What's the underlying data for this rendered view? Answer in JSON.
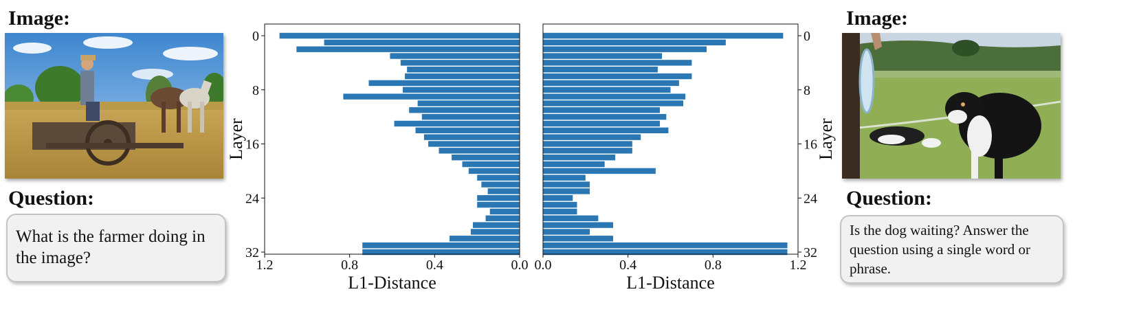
{
  "left": {
    "image_label": "Image:",
    "question_label": "Question:",
    "question": "What is the farmer doing in the image?"
  },
  "right": {
    "image_label": "Image:",
    "question_label": "Question:",
    "question": "Is the dog waiting? Answer the question using a single word or phrase."
  },
  "colors": {
    "bar": "#2a77b4"
  },
  "chart_data": [
    {
      "type": "bar",
      "orientation": "horizontal",
      "direction": "reversed",
      "xlabel": "L1-Distance",
      "ylabel": "Layer",
      "xlim": [
        1.2,
        0.0
      ],
      "xticks": [
        "1.2",
        "0.8",
        "0.4",
        "0.0"
      ],
      "yticks": [
        "0",
        "8",
        "16",
        "24",
        "32"
      ],
      "layers": [
        0,
        1,
        2,
        3,
        4,
        5,
        6,
        7,
        8,
        9,
        10,
        11,
        12,
        13,
        14,
        15,
        16,
        17,
        18,
        19,
        20,
        21,
        22,
        23,
        24,
        25,
        26,
        27,
        28,
        29,
        30,
        31,
        32
      ],
      "values": [
        1.13,
        0.92,
        1.05,
        0.61,
        0.56,
        0.53,
        0.54,
        0.71,
        0.55,
        0.83,
        0.48,
        0.52,
        0.46,
        0.59,
        0.49,
        0.45,
        0.43,
        0.38,
        0.32,
        0.27,
        0.24,
        0.2,
        0.18,
        0.15,
        0.2,
        0.2,
        0.14,
        0.16,
        0.22,
        0.23,
        0.33,
        0.74,
        0.74
      ]
    },
    {
      "type": "bar",
      "orientation": "horizontal",
      "xlabel": "L1-Distance",
      "ylabel": "Layer",
      "xlim": [
        0.0,
        1.2
      ],
      "xticks": [
        "0.0",
        "0.4",
        "0.8",
        "1.2"
      ],
      "yticks": [
        "0",
        "8",
        "16",
        "24",
        "32"
      ],
      "layers": [
        0,
        1,
        2,
        3,
        4,
        5,
        6,
        7,
        8,
        9,
        10,
        11,
        12,
        13,
        14,
        15,
        16,
        17,
        18,
        19,
        20,
        21,
        22,
        23,
        24,
        25,
        26,
        27,
        28,
        29,
        30,
        31,
        32
      ],
      "values": [
        1.13,
        0.86,
        0.77,
        0.56,
        0.7,
        0.54,
        0.7,
        0.64,
        0.6,
        0.67,
        0.66,
        0.55,
        0.58,
        0.55,
        0.59,
        0.46,
        0.42,
        0.42,
        0.34,
        0.29,
        0.53,
        0.2,
        0.22,
        0.22,
        0.14,
        0.16,
        0.16,
        0.26,
        0.33,
        0.22,
        0.33,
        1.15,
        1.15
      ]
    }
  ]
}
